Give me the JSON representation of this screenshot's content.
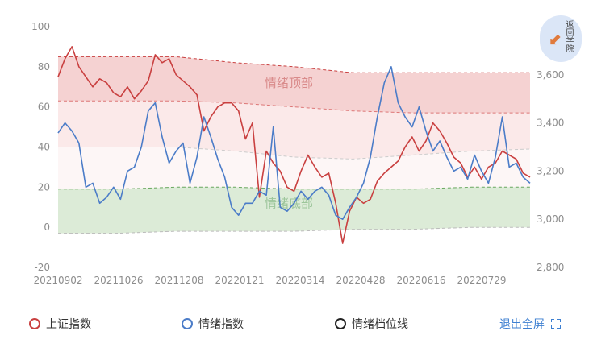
{
  "chart_data": {
    "type": "line",
    "left_axis": {
      "ticks": [
        100,
        80,
        60,
        40,
        20,
        0,
        -20
      ],
      "ylim": [
        -20,
        100
      ]
    },
    "right_axis": {
      "ticks": [
        "3,600",
        "3,400",
        "3,200",
        "3,000",
        "2,800"
      ],
      "ylim": [
        2800,
        3800
      ]
    },
    "x_ticks": [
      "20210902",
      "20211026",
      "20211208",
      "20220121",
      "20220314",
      "20220428",
      "20220616",
      "20220729"
    ],
    "zones": [
      {
        "label": "情绪顶部",
        "color": "#f2c3c3",
        "upper": [
          85,
          85,
          85,
          82,
          80,
          77,
          77,
          77,
          77
        ],
        "lower": [
          63,
          63,
          63,
          62,
          60,
          58,
          57,
          57,
          57
        ]
      },
      {
        "label": "情绪底部",
        "color": "#d6e7d0",
        "upper": [
          19,
          19,
          20,
          20,
          19,
          19,
          19,
          20,
          20
        ],
        "lower": [
          -3,
          -3,
          -2,
          -2,
          -2,
          -1,
          -1,
          0,
          0
        ]
      }
    ],
    "middle_band": {
      "upper": [
        40,
        40,
        40,
        38,
        35,
        34,
        36,
        38,
        39
      ],
      "color": "#fdf1f1"
    },
    "series": [
      {
        "name": "上证指数",
        "color": "#c94040",
        "values": [
          75,
          84,
          90,
          80,
          75,
          70,
          74,
          72,
          67,
          65,
          70,
          64,
          68,
          73,
          86,
          82,
          84,
          76,
          73,
          70,
          66,
          48,
          55,
          60,
          62,
          62,
          58,
          44,
          52,
          15,
          38,
          32,
          28,
          20,
          18,
          28,
          36,
          30,
          25,
          27,
          12,
          -8,
          8,
          15,
          12,
          14,
          23,
          27,
          30,
          33,
          40,
          45,
          38,
          43,
          52,
          48,
          42,
          35,
          32,
          25,
          30,
          24,
          30,
          32,
          38,
          36,
          34,
          27,
          25
        ]
      },
      {
        "name": "情绪指数",
        "color": "#4b7cc8",
        "values": [
          47,
          52,
          48,
          42,
          20,
          22,
          12,
          15,
          20,
          14,
          28,
          30,
          40,
          58,
          62,
          45,
          32,
          38,
          42,
          22,
          35,
          55,
          45,
          34,
          25,
          10,
          6,
          12,
          12,
          18,
          16,
          50,
          10,
          8,
          12,
          18,
          14,
          18,
          20,
          16,
          6,
          4,
          10,
          15,
          22,
          35,
          55,
          72,
          80,
          62,
          55,
          50,
          60,
          48,
          38,
          43,
          35,
          28,
          30,
          24,
          36,
          28,
          22,
          35,
          55,
          30,
          32,
          25,
          22
        ]
      }
    ]
  },
  "legend": [
    {
      "name": "上证指数",
      "color": "#c94040"
    },
    {
      "name": "情绪指数",
      "color": "#4b7cc8"
    },
    {
      "name": "情绪档位线",
      "color": "#222222"
    }
  ],
  "fullscreen_label": "退出全屏",
  "back_button_label": "返回学院"
}
